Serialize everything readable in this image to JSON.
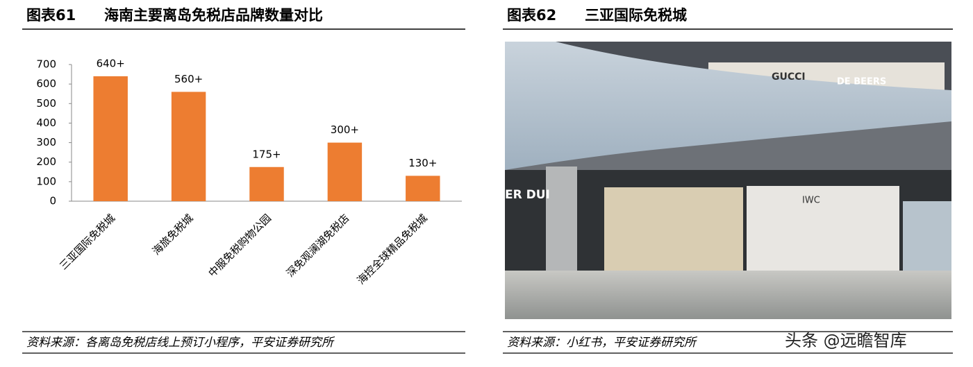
{
  "left_panel": {
    "label": "图表61",
    "title": "海南主要离岛免税店品牌数量对比",
    "source": "资料来源：各离岛免税店线上预订小程序，平安证券研究所"
  },
  "chart_data": {
    "type": "bar",
    "categories": [
      "三亚国际免税城",
      "海旅免税城",
      "中服免税购物公园",
      "深免观澜湖免税店",
      "海控全球精品免税城"
    ],
    "values": [
      640,
      560,
      175,
      300,
      130
    ],
    "value_labels": [
      "640+",
      "560+",
      "175+",
      "300+",
      "130+"
    ],
    "color": "#ed7d31",
    "ylim": [
      0,
      700
    ],
    "yticks": [
      0,
      100,
      200,
      300,
      400,
      500,
      600,
      700
    ],
    "grid": false
  },
  "right_panel": {
    "label": "图表62",
    "title": "三亚国际免税城",
    "source": "资料来源：小红书，平安证券研究所"
  },
  "photo": {
    "signs": [
      "GUCCI",
      "DE BEERS",
      "IWC",
      "ER DUI"
    ]
  },
  "watermark": "头条 @远瞻智库"
}
